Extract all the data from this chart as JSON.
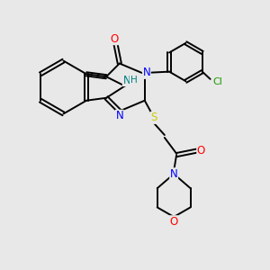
{
  "bg_color": "#e8e8e8",
  "atom_colors": {
    "N": "#0000ff",
    "O": "#ff0000",
    "S": "#cccc00",
    "Cl": "#1a9900",
    "NH": "#008080",
    "C": "#000000"
  },
  "font_size": 8.5,
  "line_width": 1.4
}
